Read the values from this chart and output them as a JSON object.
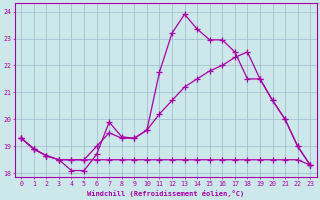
{
  "xlabel": "Windchill (Refroidissement éolien,°C)",
  "bg_color": "#cce8ea",
  "line_color": "#aa00aa",
  "grid_color": "#99bbcc",
  "ylim": [
    17.85,
    24.3
  ],
  "xlim": [
    -0.5,
    23.5
  ],
  "yticks": [
    18,
    19,
    20,
    21,
    22,
    23,
    24
  ],
  "xticks": [
    0,
    1,
    2,
    3,
    4,
    5,
    6,
    7,
    8,
    9,
    10,
    11,
    12,
    13,
    14,
    15,
    16,
    17,
    18,
    19,
    20,
    21,
    22,
    23
  ],
  "line1_x": [
    0,
    1,
    2,
    3,
    4,
    5,
    6,
    7,
    8,
    9,
    10,
    11,
    12,
    13,
    14,
    15,
    16,
    17,
    18,
    19,
    20,
    21,
    22,
    23
  ],
  "line1_y": [
    19.3,
    18.9,
    18.65,
    18.5,
    18.1,
    18.1,
    18.7,
    19.9,
    19.35,
    19.3,
    19.6,
    21.75,
    23.2,
    23.9,
    23.35,
    22.95,
    22.95,
    22.5,
    21.5,
    21.5,
    20.7,
    20.0,
    19.0,
    18.3
  ],
  "line2_x": [
    0,
    1,
    2,
    3,
    4,
    5,
    6,
    7,
    8,
    9,
    10,
    11,
    12,
    13,
    14,
    15,
    16,
    17,
    18,
    19,
    20,
    21,
    22,
    23
  ],
  "line2_y": [
    19.3,
    18.9,
    18.65,
    18.5,
    18.5,
    18.5,
    18.5,
    18.5,
    18.5,
    18.5,
    18.5,
    18.5,
    18.5,
    18.5,
    18.5,
    18.5,
    18.5,
    18.5,
    18.5,
    18.5,
    18.5,
    18.5,
    18.5,
    18.3
  ],
  "line3_x": [
    0,
    1,
    2,
    3,
    4,
    5,
    6,
    7,
    8,
    9,
    10,
    11,
    12,
    13,
    14,
    15,
    16,
    17,
    18,
    19,
    20,
    21,
    22,
    23
  ],
  "line3_y": [
    19.3,
    18.9,
    18.65,
    18.5,
    18.5,
    18.5,
    19.0,
    19.5,
    19.3,
    19.3,
    19.6,
    20.2,
    20.7,
    21.2,
    21.5,
    21.8,
    22.0,
    22.3,
    22.5,
    21.5,
    20.7,
    20.0,
    19.0,
    18.3
  ],
  "lw": 0.9,
  "ms": 3.5
}
